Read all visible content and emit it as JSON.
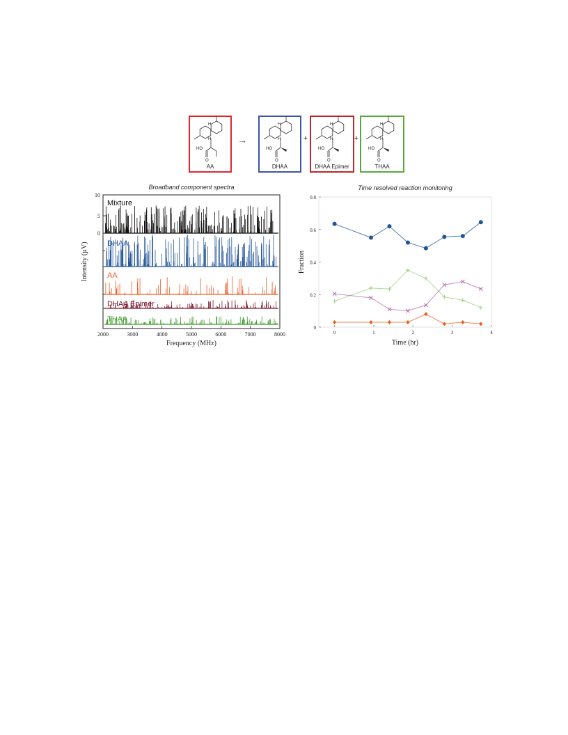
{
  "scheme": {
    "arrow": "→",
    "plus": "+",
    "boxes": [
      {
        "label": "AA",
        "color": "#e0262b"
      },
      {
        "label": "DHAA",
        "color": "#3b55a8"
      },
      {
        "label": "DHAA Epimer",
        "color": "#c0262b"
      },
      {
        "label": "THAA",
        "color": "#5aa83b"
      }
    ],
    "atoms": {
      "h": "H",
      "ho": "HO",
      "o": "O"
    }
  },
  "chart_data": [
    {
      "type": "line",
      "title": "Broadband component spectra",
      "xlabel": "Frequency (MHz)",
      "ylabel": "Intensity (µV)",
      "xlim": [
        2000,
        8000
      ],
      "xticks": [
        2000,
        3000,
        4000,
        5000,
        6000,
        7000,
        8000
      ],
      "yticks": [
        0,
        5,
        10
      ],
      "series": [
        {
          "name": "Mixture",
          "color": "#111111",
          "max_uV": 7.5
        },
        {
          "name": "DHAA",
          "color": "#2a5a9c",
          "max_uV": 6.5
        },
        {
          "name": "AA",
          "color": "#ee5a24",
          "max_uV": 5.0
        },
        {
          "name": "DHAA Epimer",
          "color": "#7a1a2c",
          "max_uV": 1.5
        },
        {
          "name": "THAA",
          "color": "#3f9a2a",
          "max_uV": 1.3
        }
      ]
    },
    {
      "type": "line",
      "title": "Time resolved reaction monitoring",
      "xlabel": "Time (hr)",
      "ylabel": "Fraction",
      "xlim": [
        -0.4,
        4
      ],
      "ylim": [
        0,
        0.8
      ],
      "xticks": [
        0,
        1,
        2,
        3,
        4
      ],
      "yticks": [
        0,
        0.2,
        0.4,
        0.6,
        0.8
      ],
      "x": [
        0,
        0.93,
        1.4,
        1.87,
        2.33,
        2.8,
        3.27,
        3.73
      ],
      "series": [
        {
          "color": "#1f5596",
          "marker": "circle",
          "values": [
            0.635,
            0.55,
            0.62,
            0.52,
            0.485,
            0.555,
            0.56,
            0.645
          ]
        },
        {
          "color": "#9ed07e",
          "marker": "plus",
          "values": [
            0.16,
            0.24,
            0.235,
            0.35,
            0.3,
            0.185,
            0.165,
            0.12
          ]
        },
        {
          "color": "#b36aad",
          "marker": "cross",
          "values": [
            0.205,
            0.18,
            0.11,
            0.1,
            0.135,
            0.26,
            0.28,
            0.235
          ]
        },
        {
          "color": "#f25a1a",
          "marker": "diamond",
          "values": [
            0.03,
            0.03,
            0.03,
            0.03,
            0.08,
            0.02,
            0.03,
            0.02
          ]
        }
      ]
    }
  ]
}
